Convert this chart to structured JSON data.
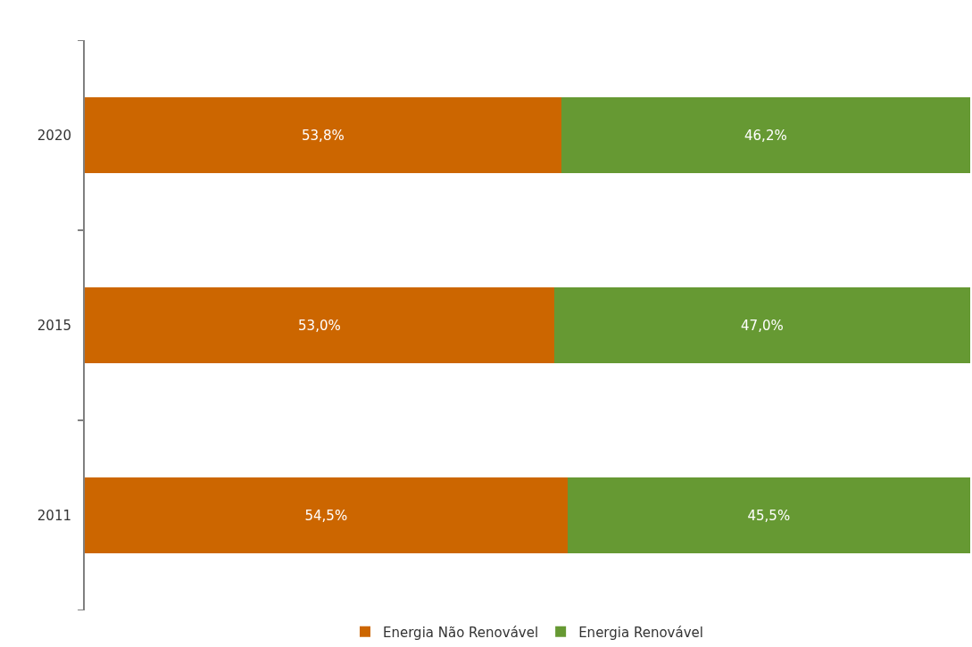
{
  "chart_data": {
    "type": "bar",
    "orientation": "horizontal",
    "stacked": true,
    "categories": [
      "2020",
      "2015",
      "2011"
    ],
    "series": [
      {
        "name": "Energia Não Renovável",
        "color": "#cc6600",
        "values": [
          53.8,
          53.0,
          54.5
        ],
        "value_labels": [
          "53,8%",
          "53,0%",
          "54,5%"
        ]
      },
      {
        "name": "Energia Renovável",
        "color": "#669933",
        "values": [
          46.2,
          47.0,
          45.5
        ],
        "value_labels": [
          "46,2%",
          "47,0%",
          "45,5%"
        ]
      }
    ],
    "xlim": [
      0,
      100
    ],
    "tick_labels": "y",
    "legend": "bottom"
  }
}
